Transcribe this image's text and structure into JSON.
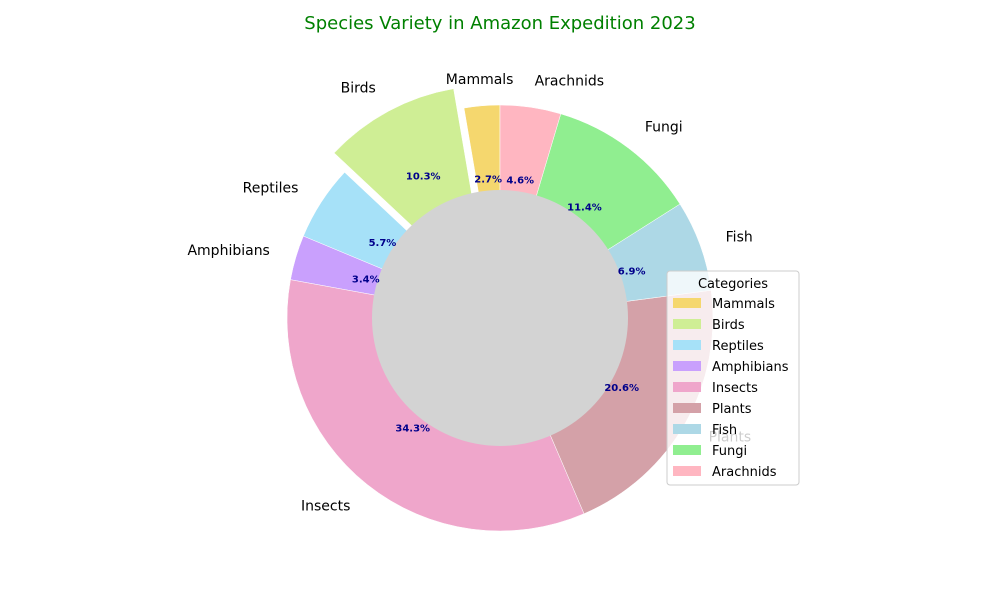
{
  "chart_data": {
    "type": "pie",
    "style": "donut",
    "title": "Species Variety in Amazon Expedition 2023",
    "title_color": "#008000",
    "categories": [
      "Mammals",
      "Birds",
      "Reptiles",
      "Amphibians",
      "Insects",
      "Plants",
      "Fish",
      "Fungi",
      "Arachnids"
    ],
    "values": [
      2.7,
      10.3,
      5.7,
      3.4,
      34.3,
      20.6,
      6.9,
      11.4,
      4.6
    ],
    "percent_labels": [
      "2.7%",
      "10.3%",
      "5.7%",
      "3.4%",
      "34.3%",
      "20.6%",
      "6.9%",
      "11.4%",
      "4.6%"
    ],
    "colors": [
      "#f5d76e",
      "#cfee95",
      "#a6e1f8",
      "#c9a0fd",
      "#efa6cb",
      "#d4a1a8",
      "#add8e6",
      "#90ee90",
      "#ffb6c1"
    ],
    "exploded": [
      "Birds"
    ],
    "center_color": "#d3d3d3",
    "start_angle_deg": 90,
    "direction": "counterclockwise",
    "legend": {
      "title": "Categories",
      "placement": "center-right",
      "entries": [
        "Mammals",
        "Birds",
        "Reptiles",
        "Amphibians",
        "Insects",
        "Plants",
        "Fish",
        "Fungi",
        "Arachnids"
      ]
    }
  }
}
